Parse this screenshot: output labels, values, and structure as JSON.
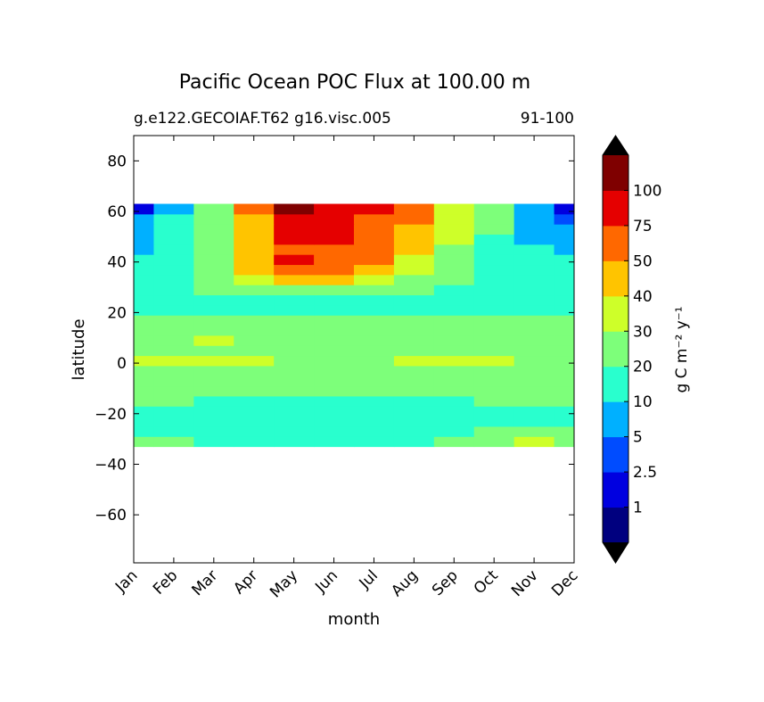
{
  "chart_data": {
    "type": "contourf",
    "title": "Pacific Ocean POC Flux at 100.00 m",
    "subtitle_left": "g.e122.GECOIAF.T62 g16.visc.005",
    "subtitle_right": "91-100",
    "xlabel": "month",
    "ylabel": "latitude",
    "categories": [
      "Jan",
      "Feb",
      "Mar",
      "Apr",
      "May",
      "Jun",
      "Jul",
      "Aug",
      "Sep",
      "Oct",
      "Nov",
      "Dec"
    ],
    "y": [
      -31,
      -27,
      -23,
      -19,
      -15,
      -11,
      -7,
      -3,
      1,
      5,
      9,
      13,
      17,
      21,
      25,
      29,
      33,
      37,
      41,
      45,
      49,
      53,
      57,
      61
    ],
    "ylim": [
      -79,
      90
    ],
    "yticks": [
      {
        "value": -60,
        "label": "−60"
      },
      {
        "value": -40,
        "label": "−40"
      },
      {
        "value": -20,
        "label": "−20"
      },
      0,
      20,
      40,
      60,
      80
    ],
    "z": [
      [
        22,
        21,
        18,
        16,
        15,
        15,
        15,
        16,
        21,
        28,
        31,
        24
      ],
      [
        16,
        15,
        15,
        15,
        15,
        15,
        15,
        16,
        19,
        21,
        21,
        22
      ],
      [
        15,
        15,
        15,
        15,
        15,
        15,
        15,
        15,
        15,
        16,
        16,
        16
      ],
      [
        17,
        17,
        17,
        16,
        16,
        16,
        16,
        16,
        17,
        17,
        17,
        17
      ],
      [
        21,
        20,
        19,
        18,
        18,
        18,
        18,
        18,
        19,
        20,
        20,
        21
      ],
      [
        23,
        23,
        23,
        23,
        23,
        23,
        23,
        23,
        23,
        23,
        23,
        23
      ],
      [
        24,
        24,
        24,
        24,
        24,
        24,
        24,
        24,
        24,
        24,
        24,
        24
      ],
      [
        26,
        27,
        27,
        26,
        25,
        24,
        24,
        25,
        28,
        27,
        25,
        25
      ],
      [
        31,
        32,
        32,
        30,
        27,
        25,
        25,
        31,
        32,
        30,
        26,
        26
      ],
      [
        25,
        25,
        26,
        25,
        24,
        24,
        24,
        25,
        25,
        25,
        24,
        24
      ],
      [
        24,
        24,
        31,
        24,
        24,
        24,
        24,
        24,
        24,
        24,
        24,
        24
      ],
      [
        23,
        23,
        23,
        23,
        23,
        23,
        23,
        23,
        23,
        23,
        23,
        23
      ],
      [
        21,
        21,
        21,
        21,
        21,
        21,
        21,
        21,
        21,
        21,
        21,
        21
      ],
      [
        18,
        18,
        18,
        18,
        18,
        18,
        18,
        18,
        18,
        18,
        18,
        18
      ],
      [
        15,
        15,
        15,
        16,
        17,
        16,
        16,
        15,
        15,
        15,
        15,
        15
      ],
      [
        18,
        19,
        21,
        23,
        24,
        23,
        22,
        21,
        19,
        16,
        15,
        15
      ],
      [
        16,
        18,
        22,
        33,
        45,
        42,
        32,
        24,
        20,
        17,
        15,
        15
      ],
      [
        15,
        17,
        24,
        45,
        60,
        58,
        45,
        30,
        22,
        17,
        14,
        14
      ],
      [
        12,
        16,
        25,
        45,
        80,
        62,
        55,
        38,
        25,
        18,
        12,
        11
      ],
      [
        9,
        14,
        24,
        42,
        70,
        65,
        60,
        42,
        28,
        18,
        10,
        8
      ],
      [
        7,
        12,
        23,
        40,
        78,
        80,
        62,
        45,
        30,
        18,
        9,
        7
      ],
      [
        6,
        11,
        23,
        42,
        80,
        85,
        65,
        48,
        32,
        20,
        8,
        6
      ],
      [
        5,
        10,
        24,
        45,
        85,
        80,
        70,
        55,
        35,
        20,
        7,
        4
      ],
      [
        2,
        8,
        26,
        55,
        110,
        90,
        75,
        60,
        38,
        20,
        6,
        2
      ]
    ],
    "levels": [
      1,
      2.5,
      5,
      10,
      20,
      30,
      40,
      50,
      75,
      100
    ],
    "colors": [
      "#00007f",
      "#0000e0",
      "#004cff",
      "#00b0ff",
      "#29ffce",
      "#7dff7a",
      "#ceff29",
      "#ffc400",
      "#ff6800",
      "#e50000",
      "#7f0000"
    ],
    "extend_color": "#000000",
    "colorbar_label": "g C m⁻² y⁻¹"
  }
}
